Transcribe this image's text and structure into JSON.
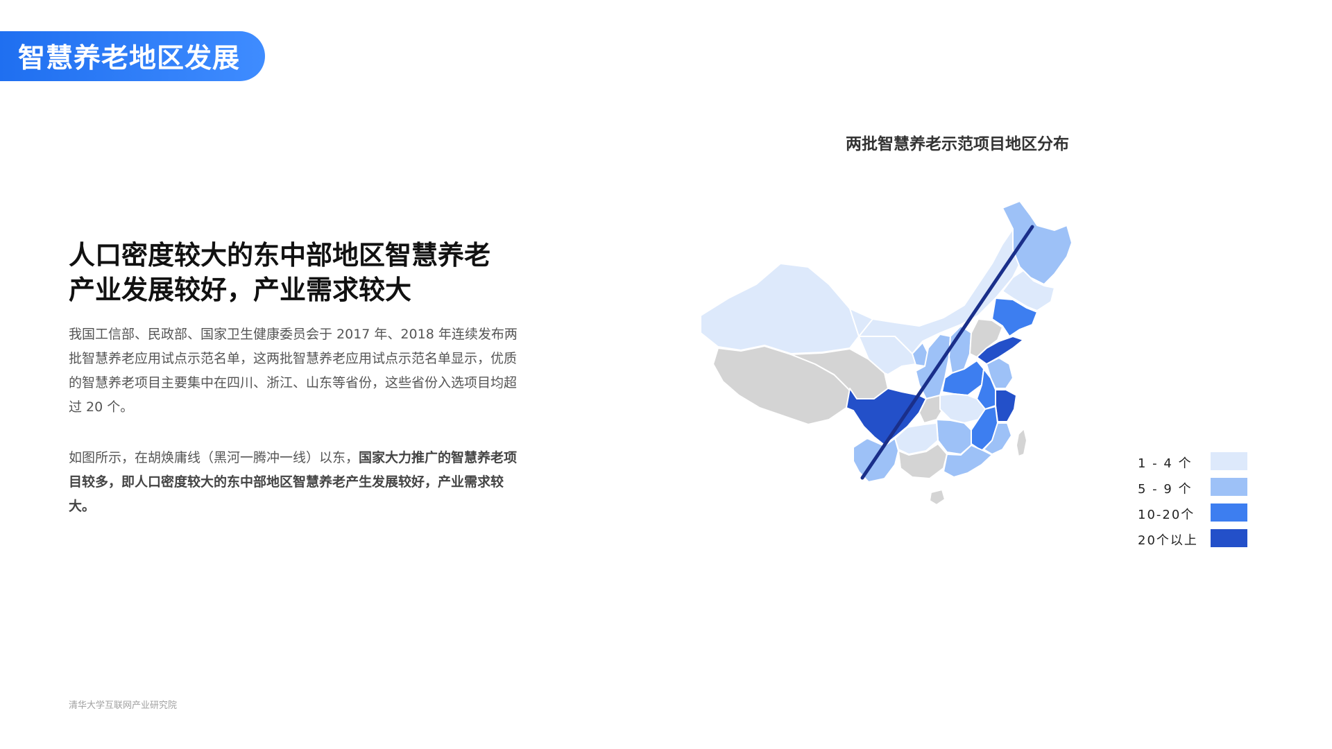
{
  "header": {
    "title": "智慧养老地区发展"
  },
  "headline": {
    "line1": "人口密度较大的东中部地区智慧养老",
    "line2": "产业发展较好，产业需求较大"
  },
  "body": {
    "para1": "我国工信部、民政部、国家卫生健康委员会于 2017 年、2018 年连续发布两批智慧养老应用试点示范名单，这两批智慧养老应用试点示范名单显示，优质的智慧养老项目主要集中在四川、浙江、山东等省份，这些省份入选项目均超过 20 个。",
    "para2_normal": "如图所示，在胡焕庸线（黑河一腾冲一线）以东，",
    "para2_bold": "国家大力推广的智慧养老项目较多，即人口密度较大的东中部地区智慧养老产生发展较好，产业需求较大。"
  },
  "footer": {
    "source": "清华大学互联网产业研究院"
  },
  "map": {
    "title": "两批智慧养老示范项目地区分布",
    "line_color": "#1a2f8a",
    "no_data_color": "#d4d4d4",
    "legend": [
      {
        "label": "1 - 4 个",
        "color": "#dde9fb"
      },
      {
        "label": "5 - 9 个",
        "color": "#9dc1f7"
      },
      {
        "label": "10-20个",
        "color": "#3d7ef0"
      },
      {
        "label": "20个以上",
        "color": "#2350c9"
      }
    ]
  }
}
